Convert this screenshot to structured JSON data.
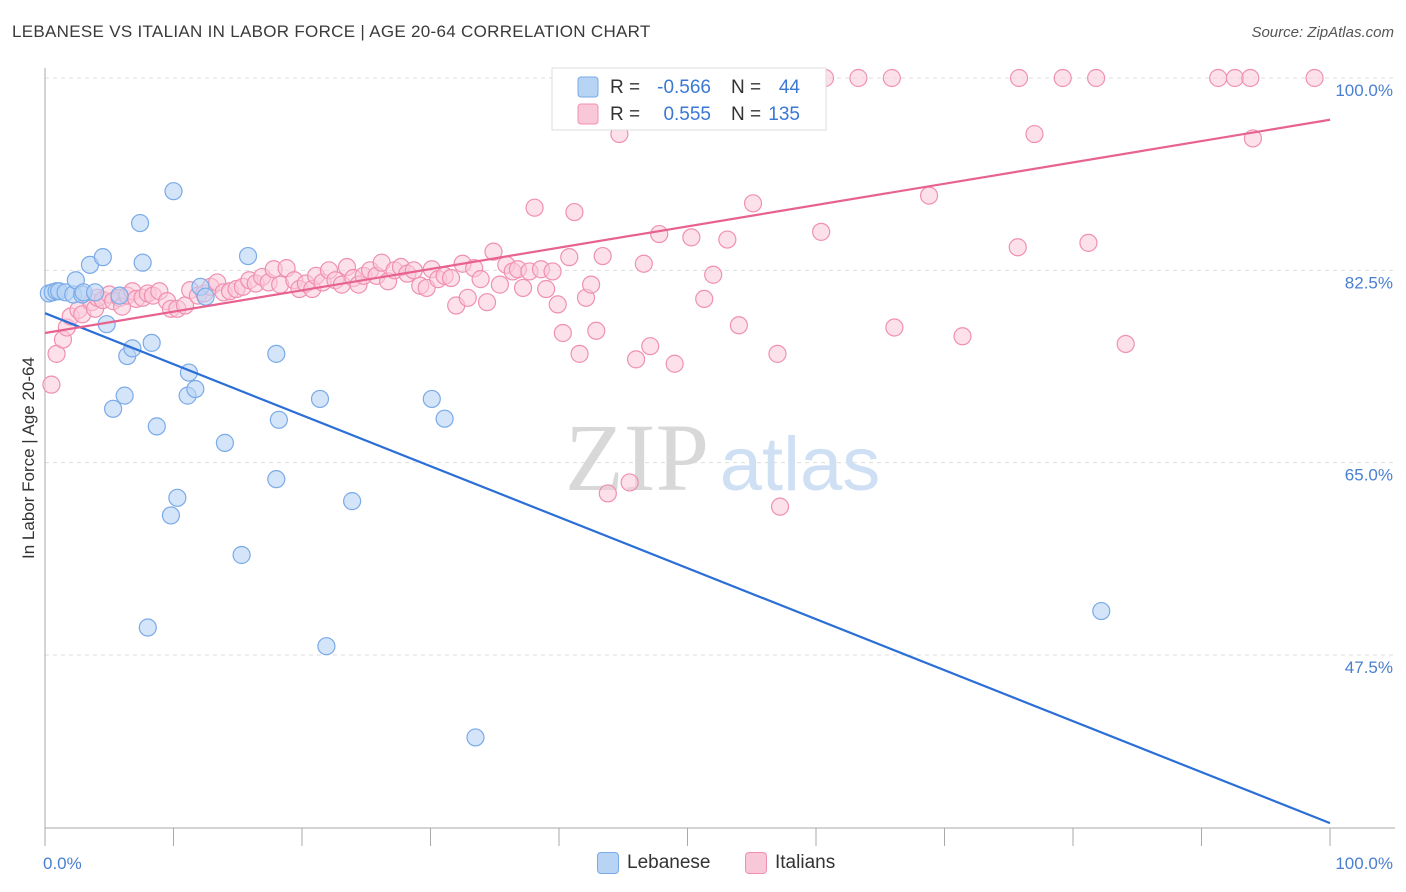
{
  "header": {
    "title": "LEBANESE VS ITALIAN IN LABOR FORCE | AGE 20-64 CORRELATION CHART",
    "source": "Source: ZipAtlas.com"
  },
  "watermark": {
    "zip": "ZIP",
    "atlas": "atlas"
  },
  "colors": {
    "blue_fill": "#b8d4f5",
    "blue_stroke": "#7aaae8",
    "blue_line": "#2b6fd6",
    "pink_fill": "#f9c8d8",
    "pink_stroke": "#f090b0",
    "pink_line": "#e8628f",
    "tick_text": "#4a7fd0",
    "grid": "#dddddd"
  },
  "legend": {
    "rows": [
      {
        "r_label": "R =",
        "r_value": "-0.566",
        "n_label": "N =",
        "n_value": "44"
      },
      {
        "r_label": "R =",
        "r_value": "0.555",
        "n_label": "N =",
        "n_value": "135"
      }
    ]
  },
  "bottom_legend": {
    "lebanese": "Lebanese",
    "italians": "Italians"
  },
  "chart_data": {
    "type": "scatter",
    "title": "LEBANESE VS ITALIAN IN LABOR FORCE | AGE 20-64 CORRELATION CHART",
    "xlabel": "",
    "ylabel": "In Labor Force | Age 20-64",
    "xlim": [
      0,
      100
    ],
    "ylim": [
      30,
      101
    ],
    "x_ticks": [
      "0.0%",
      "100.0%"
    ],
    "y_ticks": [
      {
        "value": 100,
        "label": "100.0%"
      },
      {
        "value": 82.5,
        "label": "82.5%"
      },
      {
        "value": 65,
        "label": "65.0%"
      },
      {
        "value": 47.5,
        "label": "47.5%"
      }
    ],
    "grid": true,
    "legend_position": "top-center",
    "series": [
      {
        "name": "Lebanese",
        "R": -0.566,
        "N": 44,
        "trend": {
          "x": [
            0,
            100
          ],
          "y": [
            78.6,
            32.2
          ]
        },
        "points": [
          [
            0.3,
            80.4
          ],
          [
            0.6,
            80.5
          ],
          [
            0.9,
            80.6
          ],
          [
            1.1,
            80.6
          ],
          [
            1.6,
            80.5
          ],
          [
            2.2,
            80.3
          ],
          [
            2.4,
            81.6
          ],
          [
            2.9,
            80.3
          ],
          [
            3.0,
            80.5
          ],
          [
            3.5,
            83.0
          ],
          [
            3.9,
            80.5
          ],
          [
            4.5,
            83.7
          ],
          [
            4.8,
            77.6
          ],
          [
            5.3,
            69.9
          ],
          [
            5.8,
            80.2
          ],
          [
            6.2,
            71.1
          ],
          [
            6.4,
            74.7
          ],
          [
            6.8,
            75.4
          ],
          [
            7.4,
            86.8
          ],
          [
            7.6,
            83.2
          ],
          [
            8.0,
            50.0
          ],
          [
            8.3,
            75.9
          ],
          [
            8.7,
            68.3
          ],
          [
            9.8,
            60.2
          ],
          [
            10.0,
            89.7
          ],
          [
            10.3,
            61.8
          ],
          [
            11.1,
            71.1
          ],
          [
            11.2,
            73.2
          ],
          [
            11.7,
            71.7
          ],
          [
            12.1,
            81.0
          ],
          [
            12.5,
            80.1
          ],
          [
            14.0,
            66.8
          ],
          [
            15.3,
            56.6
          ],
          [
            15.8,
            83.8
          ],
          [
            18.0,
            63.5
          ],
          [
            18.0,
            74.9
          ],
          [
            18.2,
            68.9
          ],
          [
            21.4,
            70.8
          ],
          [
            21.9,
            48.3
          ],
          [
            23.9,
            61.5
          ],
          [
            30.1,
            70.8
          ],
          [
            31.1,
            69.0
          ],
          [
            33.5,
            40.0
          ],
          [
            82.2,
            51.5
          ]
        ]
      },
      {
        "name": "Italians",
        "R": 0.555,
        "N": 135,
        "trend": {
          "x": [
            0,
            100
          ],
          "y": [
            76.8,
            96.2
          ]
        },
        "points": [
          [
            0.5,
            72.1
          ],
          [
            0.9,
            74.9
          ],
          [
            1.4,
            76.2
          ],
          [
            1.7,
            77.3
          ],
          [
            2.0,
            78.3
          ],
          [
            2.6,
            78.9
          ],
          [
            2.9,
            78.5
          ],
          [
            3.6,
            79.6
          ],
          [
            3.9,
            79.0
          ],
          [
            4.1,
            80.0
          ],
          [
            4.5,
            79.8
          ],
          [
            5.0,
            80.3
          ],
          [
            5.3,
            79.7
          ],
          [
            5.8,
            80.0
          ],
          [
            6.0,
            79.2
          ],
          [
            6.4,
            80.2
          ],
          [
            6.8,
            80.6
          ],
          [
            7.1,
            79.9
          ],
          [
            7.6,
            80.0
          ],
          [
            8.0,
            80.4
          ],
          [
            8.4,
            80.2
          ],
          [
            8.9,
            80.6
          ],
          [
            9.5,
            79.7
          ],
          [
            9.8,
            79.0
          ],
          [
            10.3,
            79.0
          ],
          [
            10.9,
            79.3
          ],
          [
            11.3,
            80.7
          ],
          [
            11.9,
            80.2
          ],
          [
            12.4,
            80.4
          ],
          [
            12.9,
            81.0
          ],
          [
            13.4,
            81.4
          ],
          [
            13.9,
            80.5
          ],
          [
            14.4,
            80.6
          ],
          [
            14.9,
            80.8
          ],
          [
            15.4,
            81.0
          ],
          [
            15.9,
            81.6
          ],
          [
            16.4,
            81.3
          ],
          [
            16.9,
            81.9
          ],
          [
            17.4,
            81.4
          ],
          [
            17.8,
            82.6
          ],
          [
            18.3,
            81.2
          ],
          [
            18.8,
            82.7
          ],
          [
            19.4,
            81.6
          ],
          [
            19.8,
            80.8
          ],
          [
            20.3,
            81.3
          ],
          [
            20.8,
            80.8
          ],
          [
            21.1,
            82.0
          ],
          [
            21.6,
            81.4
          ],
          [
            22.1,
            82.5
          ],
          [
            22.6,
            81.6
          ],
          [
            23.1,
            81.2
          ],
          [
            23.5,
            82.8
          ],
          [
            24.0,
            81.8
          ],
          [
            24.4,
            81.2
          ],
          [
            24.8,
            82.0
          ],
          [
            25.3,
            82.5
          ],
          [
            25.8,
            82.0
          ],
          [
            26.2,
            83.2
          ],
          [
            26.7,
            81.5
          ],
          [
            27.2,
            82.5
          ],
          [
            27.7,
            82.8
          ],
          [
            28.2,
            82.2
          ],
          [
            28.7,
            82.5
          ],
          [
            29.2,
            81.1
          ],
          [
            29.7,
            80.9
          ],
          [
            30.1,
            82.6
          ],
          [
            30.6,
            81.7
          ],
          [
            31.1,
            82.0
          ],
          [
            31.6,
            81.8
          ],
          [
            32.0,
            79.3
          ],
          [
            32.5,
            83.1
          ],
          [
            32.9,
            80.0
          ],
          [
            33.4,
            82.7
          ],
          [
            33.9,
            81.7
          ],
          [
            34.4,
            79.6
          ],
          [
            34.9,
            84.2
          ],
          [
            35.4,
            81.2
          ],
          [
            35.9,
            83.0
          ],
          [
            36.4,
            82.4
          ],
          [
            36.8,
            82.6
          ],
          [
            37.2,
            80.9
          ],
          [
            37.7,
            82.4
          ],
          [
            38.1,
            88.2
          ],
          [
            38.6,
            82.6
          ],
          [
            39.0,
            80.8
          ],
          [
            39.5,
            82.4
          ],
          [
            39.9,
            79.4
          ],
          [
            40.3,
            76.8
          ],
          [
            40.8,
            83.7
          ],
          [
            41.2,
            87.8
          ],
          [
            41.6,
            74.9
          ],
          [
            42.1,
            80.0
          ],
          [
            42.5,
            81.2
          ],
          [
            42.9,
            77.0
          ],
          [
            43.4,
            83.8
          ],
          [
            43.8,
            62.2
          ],
          [
            44.7,
            94.9
          ],
          [
            45.5,
            63.2
          ],
          [
            46.0,
            74.4
          ],
          [
            46.6,
            83.1
          ],
          [
            47.1,
            75.6
          ],
          [
            47.8,
            85.8
          ],
          [
            49.0,
            74.0
          ],
          [
            50.3,
            85.5
          ],
          [
            51.3,
            79.9
          ],
          [
            52.0,
            82.1
          ],
          [
            53.1,
            85.3
          ],
          [
            54.0,
            77.5
          ],
          [
            55.1,
            88.6
          ],
          [
            57.0,
            74.9
          ],
          [
            57.2,
            61.0
          ],
          [
            60.4,
            86.0
          ],
          [
            66.1,
            77.3
          ],
          [
            68.8,
            89.3
          ],
          [
            71.4,
            76.5
          ],
          [
            75.7,
            84.6
          ],
          [
            77.0,
            94.9
          ],
          [
            81.2,
            85.0
          ],
          [
            84.1,
            75.8
          ],
          [
            94.0,
            94.5
          ],
          [
            52.3,
            100.0
          ],
          [
            53.2,
            100.0
          ],
          [
            56.0,
            100.0
          ],
          [
            60.7,
            100.0
          ],
          [
            63.3,
            100.0
          ],
          [
            65.9,
            100.0
          ],
          [
            75.8,
            100.0
          ],
          [
            79.2,
            100.0
          ],
          [
            81.8,
            100.0
          ],
          [
            91.3,
            100.0
          ],
          [
            92.6,
            100.0
          ],
          [
            93.8,
            100.0
          ],
          [
            98.8,
            100.0
          ],
          [
            46.9,
            100.0
          ],
          [
            56.3,
            100.0
          ]
        ]
      }
    ]
  }
}
